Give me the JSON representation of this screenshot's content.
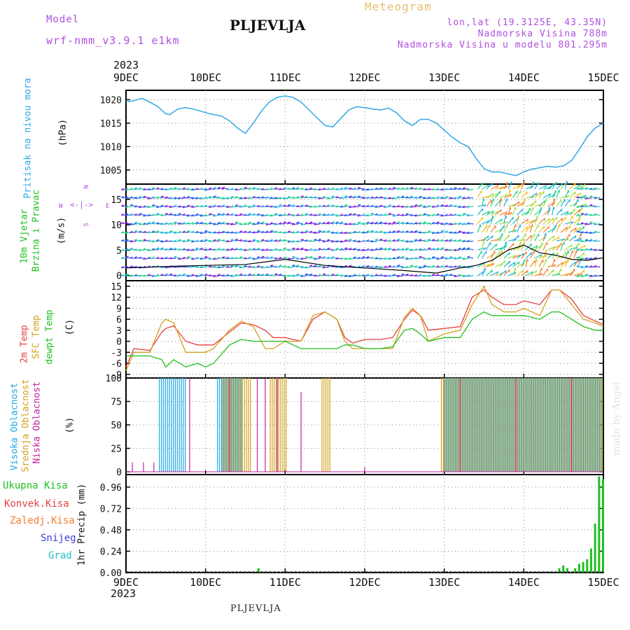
{
  "header": {
    "model_label": "Model",
    "model_name": "wrf-nmm_v3.9.1 e1km",
    "station": "PLJEVLJA",
    "meteogram": "Meteogram",
    "lonlat": "lon,lat (19.3125E, 43.35N)",
    "elevation": "Nadmorska Visina 788m",
    "elevation_model": "Nadmorska Visina u modelu 801.295m",
    "year_top": "2023",
    "year_bottom": "2023"
  },
  "footer": {
    "station": "PLJEVLJA"
  },
  "watermark": "made by Angel",
  "dates": [
    "9DEC",
    "10DEC",
    "11DEC",
    "12DEC",
    "13DEC",
    "14DEC",
    "15DEC"
  ],
  "colors": {
    "pressure": "#30a8e8",
    "temp2m": "#e84040",
    "sfc": "#d4a020",
    "dewpt": "#20c020",
    "high": "#20a8e0",
    "mid": "#d4a020",
    "low": "#c020a0",
    "precip_total": "#20c020",
    "precip_conv": "#e84040",
    "precip_frz": "#f08030",
    "precip_snow": "#4040e0",
    "precip_grad": "#20c0c0",
    "purple": "#b04fe0"
  },
  "panel_labels": {
    "pressure": [
      "Pritisak na nivou mora",
      "(hPa)"
    ],
    "wind": [
      "10m Vjetar",
      "Brzina i Pravac",
      "(m/s)"
    ],
    "wind_compass": {
      "n": "N",
      "s": "S",
      "w": "W",
      "e": "E"
    },
    "temp": [
      "2m Temp",
      "SFC Temp",
      "dewpt Temp",
      "(C)"
    ],
    "cloud": [
      "Visoka Oblacnost",
      "Srednja Oblacnost",
      "Niska Oblacnost",
      "(%)"
    ],
    "precip": [
      "Ukupna Kisa",
      "Konvek.Kisa",
      "Zaledj.Kisa",
      "Snijeg",
      "Grad",
      "1hr Precip (mm)"
    ]
  },
  "chart_data": [
    {
      "type": "line",
      "title": "Pritisak na nivou mora",
      "ylabel": "(hPa)",
      "ylim": [
        1002,
        1022
      ],
      "yticks": [
        1005,
        1010,
        1015,
        1020
      ],
      "x_days": [
        0,
        0.1,
        0.2,
        0.3,
        0.4,
        0.5,
        0.55,
        0.65,
        0.75,
        0.85,
        0.95,
        1.05,
        1.2,
        1.3,
        1.4,
        1.5,
        1.6,
        1.7,
        1.8,
        1.9,
        2.0,
        2.1,
        2.2,
        2.35,
        2.5,
        2.6,
        2.7,
        2.8,
        2.9,
        3.0,
        3.1,
        3.2,
        3.3,
        3.4,
        3.5,
        3.6,
        3.7,
        3.8,
        3.9,
        4.0,
        4.1,
        4.2,
        4.3,
        4.4,
        4.5,
        4.6,
        4.7,
        4.8,
        4.9,
        5.0,
        5.1,
        5.2,
        5.3,
        5.4,
        5.5,
        5.6,
        5.7,
        5.8,
        5.9,
        6.0
      ],
      "pressure": [
        1019.5,
        1019.8,
        1020.3,
        1019.5,
        1018.5,
        1017,
        1016.8,
        1018,
        1018.3,
        1018.0,
        1017.5,
        1017,
        1016.5,
        1015.5,
        1014,
        1012.8,
        1015,
        1017.5,
        1019.5,
        1020.5,
        1020.8,
        1020.5,
        1019.5,
        1017,
        1014.5,
        1014.2,
        1016,
        1017.8,
        1018.5,
        1018.3,
        1018,
        1017.8,
        1018.2,
        1017.2,
        1015.5,
        1014.5,
        1015.8,
        1015.8,
        1015,
        1013.5,
        1012,
        1010.8,
        1010,
        1007.5,
        1005.3,
        1004.6,
        1004.6,
        1004.2,
        1003.8,
        1004.6,
        1005.2,
        1005.5,
        1005.8,
        1005.6,
        1005.9,
        1007,
        1009.5,
        1012.2,
        1014,
        1015
      ]
    },
    {
      "type": "line",
      "title": "10m Vjetar Brzina i Pravac",
      "ylabel": "(m/s)",
      "ylim": [
        -1,
        18
      ],
      "yticks": [
        0,
        5,
        10,
        15
      ],
      "x_days": [
        0,
        0.5,
        1,
        1.5,
        2,
        2.5,
        3,
        3.5,
        3.9,
        4.2,
        4.4,
        4.6,
        4.8,
        5,
        5.2,
        5.4,
        5.6,
        5.8,
        6
      ],
      "speed": [
        1.5,
        1.8,
        2,
        2.2,
        3.2,
        2,
        1.5,
        1,
        0.5,
        1.5,
        2,
        3,
        5,
        6,
        4.5,
        4,
        3.2,
        3,
        3.5
      ]
    },
    {
      "type": "line",
      "title": "2m Temp / SFC Temp / dewpt Temp",
      "ylabel": "(C)",
      "ylim": [
        -10,
        16.5
      ],
      "yticks": [
        -9,
        -6,
        -3,
        0,
        3,
        6,
        9,
        12,
        15
      ],
      "x_days": [
        0,
        0.1,
        0.3,
        0.45,
        0.5,
        0.6,
        0.75,
        0.9,
        1.0,
        1.1,
        1.3,
        1.45,
        1.6,
        1.75,
        1.85,
        2.0,
        2.1,
        2.2,
        2.35,
        2.5,
        2.65,
        2.75,
        2.85,
        3.0,
        3.2,
        3.35,
        3.5,
        3.6,
        3.7,
        3.8,
        4.0,
        4.2,
        4.35,
        4.5,
        4.6,
        4.75,
        4.9,
        5.0,
        5.2,
        5.35,
        5.45,
        5.6,
        5.75,
        5.9,
        6.0
      ],
      "series": [
        {
          "name": "2m Temp",
          "values": [
            -7,
            -2,
            -2.5,
            2.5,
            3.5,
            4.2,
            0,
            -1,
            -1,
            -1,
            2.5,
            5,
            4.5,
            3,
            1,
            1,
            0.5,
            0,
            6,
            8,
            6,
            1,
            -0.5,
            0.5,
            0.5,
            1,
            6,
            8.5,
            7,
            3,
            3.5,
            4,
            12,
            14,
            12,
            10,
            10,
            11,
            10,
            14,
            14,
            11.5,
            7,
            5.5,
            4.5
          ]
        },
        {
          "name": "SFC Temp",
          "values": [
            -8,
            -3,
            -3,
            5,
            6,
            5,
            -3,
            -3,
            -3,
            -2,
            3,
            5.5,
            4,
            -2,
            -2,
            0,
            0,
            0,
            7,
            8,
            6,
            0,
            -2,
            -2,
            -2,
            -2,
            6.5,
            9,
            7,
            0,
            2,
            3,
            10,
            15,
            10,
            8,
            8,
            9,
            7,
            14,
            14,
            10,
            6,
            5,
            4
          ]
        },
        {
          "name": "dewpt Temp",
          "values": [
            -4,
            -4,
            -4,
            -5,
            -7,
            -5,
            -7,
            -6,
            -7,
            -6,
            -1,
            0.5,
            0,
            0,
            0,
            0,
            -1,
            -2,
            -2,
            -2,
            -2,
            -1,
            -1,
            -2,
            -2,
            -1.5,
            3,
            3.5,
            2,
            0,
            1,
            1,
            6,
            8,
            7,
            7,
            7,
            7,
            6,
            8,
            8,
            6,
            4,
            3,
            3
          ]
        }
      ]
    },
    {
      "type": "bar",
      "title": "Oblacnost",
      "ylabel": "(%)",
      "ylim": [
        -3,
        100
      ],
      "yticks": [
        0,
        25,
        50,
        75,
        100
      ],
      "series": [
        {
          "name": "Visoka Oblacnost",
          "ranges_days": [
            [
              0.42,
              0.75
            ],
            [
              1.15,
              1.45
            ],
            [
              4.0,
              6.0
            ]
          ],
          "value": 100
        },
        {
          "name": "Srednja Oblacnost",
          "ranges_days": [
            [
              1.2,
              1.55
            ],
            [
              1.8,
              2.0
            ],
            [
              2.45,
              2.55
            ],
            [
              3.95,
              6.0
            ]
          ],
          "value": 100
        },
        {
          "name": "Niska Oblacnost",
          "x_days": [
            0.08,
            0.22,
            0.35,
            0.8,
            1.3,
            1.65,
            1.75,
            1.9,
            2.2,
            3.0,
            4.2,
            4.9,
            5.6
          ],
          "values": [
            10,
            10,
            10,
            100,
            100,
            100,
            100,
            100,
            85,
            5,
            100,
            100,
            100
          ]
        }
      ]
    },
    {
      "type": "bar",
      "title": "1hr Precip",
      "ylabel": "1hr Precip (mm)",
      "ylim": [
        0,
        1.1
      ],
      "yticks": [
        0,
        0.24,
        0.48,
        0.72,
        0.96
      ],
      "series": [
        {
          "name": "Ukupna Kisa",
          "x_days": [
            1.07,
            1.67,
            5.45,
            5.5,
            5.55,
            5.65,
            5.7,
            5.75,
            5.8,
            5.85,
            5.9,
            5.95,
            6.0
          ],
          "values": [
            0.01,
            0.05,
            0.05,
            0.08,
            0.05,
            0.05,
            0.1,
            0.12,
            0.15,
            0.27,
            0.55,
            1.08,
            1.05
          ]
        },
        {
          "name": "Konvek.Kisa",
          "x_days": [],
          "values": []
        },
        {
          "name": "Zaledj.Kisa",
          "x_days": [],
          "values": []
        },
        {
          "name": "Snijeg",
          "x_days": [],
          "values": []
        },
        {
          "name": "Grad",
          "x_days": [],
          "values": []
        }
      ]
    }
  ]
}
